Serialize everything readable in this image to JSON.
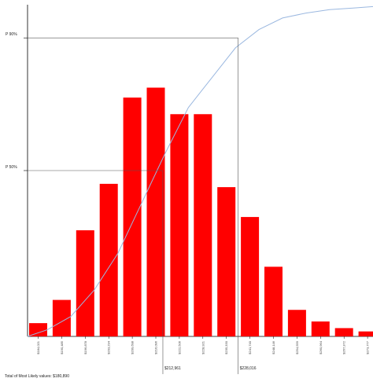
{
  "chart_data": {
    "type": "bar",
    "title": "",
    "xlabel": "",
    "ylabel": "",
    "categories": [
      "$184,021",
      "$190,485",
      "$196,878",
      "$203,294",
      "$209,698",
      "$216,096",
      "$222,506",
      "$228,921",
      "$235,330",
      "$241,740",
      "$248,146",
      "$254,559",
      "$260,964",
      "$267,372",
      "$273,777",
      "$280,182"
    ],
    "values": [
      4,
      11,
      32,
      46,
      72,
      75,
      67,
      67,
      45,
      36,
      21,
      8,
      4.5,
      2.5,
      1.5,
      0
    ],
    "ylim": [
      0,
      100
    ],
    "cumulative_series": {
      "color": "#9bb8e0",
      "values": [
        2,
        6,
        14,
        25,
        40,
        55,
        69,
        78,
        87,
        92.5,
        96,
        97.5,
        98.5,
        99,
        99.5,
        100
      ]
    },
    "percentile_lines": [
      {
        "label": "P 90%",
        "level": 90,
        "x_index": 8.5,
        "value_label": "$228,016"
      },
      {
        "label": "P 50%",
        "level": 50,
        "x_index": 5.3,
        "value_label": "$212,961"
      }
    ],
    "bar_color": "#ff0000",
    "grid": false
  },
  "footer": {
    "text": "Total of Most Likely values: $180,890"
  }
}
